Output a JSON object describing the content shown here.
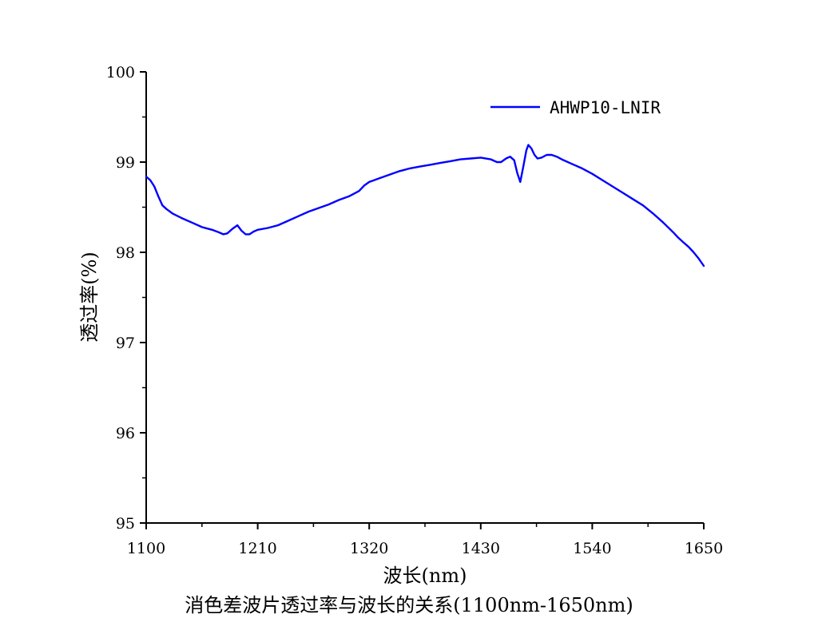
{
  "caption": "消色差波片透过率与波长的关系(1100nm-1650nm)",
  "chart_data": {
    "type": "line",
    "title": "",
    "xlabel": "波长(nm)",
    "ylabel": "透过率(%)",
    "xlim": [
      1100,
      1650
    ],
    "ylim": [
      95,
      100
    ],
    "xticks": [
      1100,
      1210,
      1320,
      1430,
      1540,
      1650
    ],
    "yticks": [
      95,
      96,
      97,
      98,
      99,
      100
    ],
    "grid": false,
    "legend_position": "top-right",
    "series": [
      {
        "name": "AHWP10-LNIR",
        "color": "#0000ff",
        "x": [
          1100,
          1104,
          1108,
          1112,
          1116,
          1120,
          1126,
          1135,
          1145,
          1155,
          1165,
          1172,
          1176,
          1180,
          1185,
          1190,
          1194,
          1198,
          1202,
          1206,
          1210,
          1220,
          1230,
          1240,
          1250,
          1260,
          1270,
          1280,
          1290,
          1300,
          1310,
          1315,
          1320,
          1325,
          1330,
          1340,
          1350,
          1360,
          1370,
          1380,
          1390,
          1400,
          1410,
          1420,
          1430,
          1440,
          1446,
          1450,
          1455,
          1459,
          1463,
          1466,
          1469,
          1472,
          1475,
          1477,
          1480,
          1483,
          1486,
          1490,
          1495,
          1500,
          1505,
          1510,
          1520,
          1530,
          1540,
          1550,
          1560,
          1570,
          1580,
          1590,
          1600,
          1610,
          1620,
          1625,
          1630,
          1635,
          1640,
          1645,
          1650
        ],
        "y": [
          98.84,
          98.8,
          98.73,
          98.62,
          98.52,
          98.48,
          98.43,
          98.38,
          98.33,
          98.28,
          98.25,
          98.22,
          98.2,
          98.21,
          98.26,
          98.3,
          98.24,
          98.2,
          98.2,
          98.23,
          98.25,
          98.27,
          98.3,
          98.35,
          98.4,
          98.45,
          98.49,
          98.53,
          98.58,
          98.62,
          98.68,
          98.74,
          98.78,
          98.8,
          98.82,
          98.86,
          98.9,
          98.93,
          98.95,
          98.97,
          98.99,
          99.01,
          99.03,
          99.04,
          99.05,
          99.03,
          99.0,
          99.0,
          99.04,
          99.06,
          99.02,
          98.88,
          98.78,
          98.95,
          99.13,
          99.19,
          99.15,
          99.08,
          99.04,
          99.05,
          99.08,
          99.08,
          99.06,
          99.03,
          98.98,
          98.93,
          98.87,
          98.8,
          98.73,
          98.66,
          98.59,
          98.52,
          98.43,
          98.33,
          98.22,
          98.16,
          98.11,
          98.06,
          98.0,
          97.93,
          97.85
        ]
      }
    ]
  }
}
